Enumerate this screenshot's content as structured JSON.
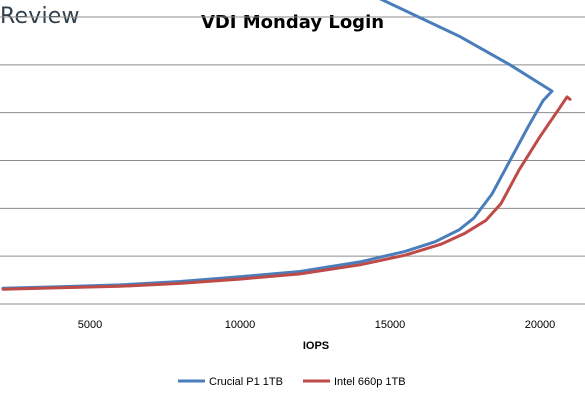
{
  "brand": {
    "text": "Review"
  },
  "chart_data": {
    "type": "line",
    "title": "VDI Monday Login",
    "xlabel": "IOPS",
    "ylabel": "",
    "xlim": [
      2000,
      21500
    ],
    "ylim": [
      0,
      6
    ],
    "xticks": [
      "5000",
      "10000",
      "15000",
      "20000"
    ],
    "xtick_values": [
      5000,
      10000,
      15000,
      20000
    ],
    "y_gridlines": [
      1,
      2,
      3,
      4,
      5,
      6
    ],
    "grid": "horizontal",
    "legend": "bottom",
    "series": [
      {
        "name": "Crucial P1 1TB",
        "color": "#4a7ebb",
        "points": [
          [
            2100,
            0.33
          ],
          [
            4000,
            0.36
          ],
          [
            6000,
            0.4
          ],
          [
            8000,
            0.47
          ],
          [
            10000,
            0.57
          ],
          [
            12000,
            0.68
          ],
          [
            14000,
            0.88
          ],
          [
            15500,
            1.1
          ],
          [
            16500,
            1.3
          ],
          [
            17300,
            1.55
          ],
          [
            17800,
            1.8
          ],
          [
            18400,
            2.3
          ],
          [
            19000,
            3.0
          ],
          [
            19600,
            3.7
          ],
          [
            20100,
            4.25
          ],
          [
            20400,
            4.45
          ],
          [
            19000,
            5.0
          ],
          [
            17300,
            5.6
          ],
          [
            14100,
            6.55
          ]
        ]
      },
      {
        "name": "Intel 660p 1TB",
        "color": "#be4b48",
        "points": [
          [
            2100,
            0.31
          ],
          [
            4000,
            0.34
          ],
          [
            6000,
            0.37
          ],
          [
            8000,
            0.43
          ],
          [
            10000,
            0.52
          ],
          [
            12000,
            0.63
          ],
          [
            14000,
            0.82
          ],
          [
            15500,
            1.02
          ],
          [
            16700,
            1.25
          ],
          [
            17500,
            1.48
          ],
          [
            18200,
            1.75
          ],
          [
            18700,
            2.1
          ],
          [
            19300,
            2.8
          ],
          [
            20000,
            3.5
          ],
          [
            20600,
            4.05
          ],
          [
            20900,
            4.33
          ],
          [
            21000,
            4.28
          ]
        ]
      }
    ]
  }
}
